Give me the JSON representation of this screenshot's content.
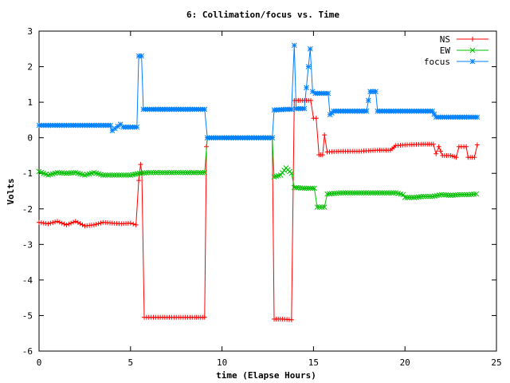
{
  "chart_data": {
    "type": "line",
    "title": "6: Collimation/focus vs. Time",
    "xlabel": "time (Elapse Hours)",
    "ylabel": "Volts",
    "xlim": [
      0,
      25
    ],
    "ylim": [
      -6,
      3
    ],
    "xticks": [
      0,
      5,
      10,
      15,
      20,
      25
    ],
    "yticks": [
      -6,
      -5,
      -4,
      -3,
      -2,
      -1,
      0,
      1,
      2,
      3
    ],
    "xtick_labels": [
      "0",
      "5",
      "10",
      "15",
      "20",
      "25"
    ],
    "ytick_labels": [
      "-6",
      "-5",
      "-4",
      "-3",
      "-2",
      "-1",
      "0",
      "1",
      "2",
      "3"
    ],
    "grid": false,
    "legend_position": "top-right",
    "series": [
      {
        "name": "NS",
        "color": "#ff0000",
        "marker": "plus",
        "points": [
          [
            0,
            -2.38
          ],
          [
            0.5,
            -2.42
          ],
          [
            1.0,
            -2.35
          ],
          [
            1.5,
            -2.45
          ],
          [
            2.0,
            -2.35
          ],
          [
            2.5,
            -2.48
          ],
          [
            3.0,
            -2.45
          ],
          [
            3.5,
            -2.38
          ],
          [
            4.0,
            -2.4
          ],
          [
            4.5,
            -2.42
          ],
          [
            5.0,
            -2.4
          ],
          [
            5.3,
            -2.45
          ],
          [
            5.45,
            -1.2
          ],
          [
            5.55,
            -0.75
          ],
          [
            5.62,
            -1.0
          ],
          [
            5.75,
            -5.05
          ],
          [
            6.5,
            -5.05
          ],
          [
            7.5,
            -5.05
          ],
          [
            8.5,
            -5.05
          ],
          [
            9.05,
            -5.05
          ],
          [
            9.15,
            -0.25
          ],
          [
            9.2,
            0.0
          ],
          [
            10,
            0.0
          ],
          [
            11,
            0.0
          ],
          [
            12,
            0.0
          ],
          [
            12.75,
            0.0
          ],
          [
            12.85,
            -5.1
          ],
          [
            13.3,
            -5.1
          ],
          [
            13.8,
            -5.12
          ],
          [
            13.95,
            1.05
          ],
          [
            14.5,
            1.05
          ],
          [
            14.85,
            1.05
          ],
          [
            15.0,
            0.55
          ],
          [
            15.15,
            0.55
          ],
          [
            15.3,
            -0.48
          ],
          [
            15.5,
            -0.48
          ],
          [
            15.6,
            0.08
          ],
          [
            15.75,
            -0.4
          ],
          [
            16.5,
            -0.38
          ],
          [
            17.5,
            -0.38
          ],
          [
            18.5,
            -0.35
          ],
          [
            19.2,
            -0.35
          ],
          [
            19.5,
            -0.22
          ],
          [
            20,
            -0.2
          ],
          [
            21,
            -0.18
          ],
          [
            21.55,
            -0.18
          ],
          [
            21.7,
            -0.45
          ],
          [
            21.85,
            -0.25
          ],
          [
            22.05,
            -0.5
          ],
          [
            22.5,
            -0.5
          ],
          [
            22.8,
            -0.55
          ],
          [
            22.95,
            -0.25
          ],
          [
            23.35,
            -0.25
          ],
          [
            23.45,
            -0.55
          ],
          [
            23.8,
            -0.55
          ],
          [
            23.95,
            -0.2
          ]
        ]
      },
      {
        "name": "EW",
        "color": "#00c000",
        "marker": "cross",
        "points": [
          [
            0,
            -0.95
          ],
          [
            0.5,
            -1.05
          ],
          [
            1.0,
            -0.98
          ],
          [
            1.5,
            -1.0
          ],
          [
            2.0,
            -0.98
          ],
          [
            2.5,
            -1.05
          ],
          [
            3.0,
            -0.98
          ],
          [
            3.5,
            -1.05
          ],
          [
            4.0,
            -1.05
          ],
          [
            4.5,
            -1.05
          ],
          [
            5.0,
            -1.05
          ],
          [
            5.5,
            -1.0
          ],
          [
            6,
            -0.98
          ],
          [
            7,
            -0.98
          ],
          [
            8,
            -0.98
          ],
          [
            9.05,
            -0.98
          ],
          [
            9.2,
            0.0
          ],
          [
            10,
            0.0
          ],
          [
            11,
            0.0
          ],
          [
            12,
            0.0
          ],
          [
            12.75,
            0.0
          ],
          [
            12.85,
            -1.1
          ],
          [
            13.2,
            -1.05
          ],
          [
            13.5,
            -0.85
          ],
          [
            13.8,
            -1.0
          ],
          [
            13.95,
            -1.4
          ],
          [
            14.5,
            -1.42
          ],
          [
            15.05,
            -1.42
          ],
          [
            15.2,
            -1.95
          ],
          [
            15.6,
            -1.95
          ],
          [
            15.75,
            -1.58
          ],
          [
            16.5,
            -1.55
          ],
          [
            17.5,
            -1.55
          ],
          [
            18.5,
            -1.55
          ],
          [
            19.5,
            -1.55
          ],
          [
            19.9,
            -1.6
          ],
          [
            20.0,
            -1.68
          ],
          [
            20.5,
            -1.68
          ],
          [
            21,
            -1.65
          ],
          [
            21.5,
            -1.65
          ],
          [
            22,
            -1.6
          ],
          [
            22.5,
            -1.62
          ],
          [
            23,
            -1.6
          ],
          [
            23.5,
            -1.6
          ],
          [
            23.9,
            -1.58
          ]
        ]
      },
      {
        "name": "focus",
        "color": "#0080ff",
        "marker": "star",
        "points": [
          [
            0,
            0.35
          ],
          [
            1,
            0.35
          ],
          [
            2,
            0.35
          ],
          [
            3,
            0.35
          ],
          [
            3.9,
            0.35
          ],
          [
            4.0,
            0.2
          ],
          [
            4.3,
            0.32
          ],
          [
            4.45,
            0.38
          ],
          [
            4.6,
            0.3
          ],
          [
            5,
            0.3
          ],
          [
            5.35,
            0.3
          ],
          [
            5.45,
            2.3
          ],
          [
            5.6,
            2.3
          ],
          [
            5.7,
            0.8
          ],
          [
            6.5,
            0.8
          ],
          [
            7.5,
            0.8
          ],
          [
            8.5,
            0.8
          ],
          [
            9.05,
            0.8
          ],
          [
            9.2,
            0.0
          ],
          [
            10,
            0.0
          ],
          [
            11,
            0.0
          ],
          [
            12,
            0.0
          ],
          [
            12.75,
            0.0
          ],
          [
            12.85,
            0.78
          ],
          [
            13.5,
            0.8
          ],
          [
            13.8,
            0.8
          ],
          [
            13.95,
            2.6
          ],
          [
            14.05,
            0.82
          ],
          [
            14.5,
            0.82
          ],
          [
            14.72,
            2.0
          ],
          [
            14.82,
            2.5
          ],
          [
            14.95,
            1.3
          ],
          [
            15.1,
            1.25
          ],
          [
            15.8,
            1.25
          ],
          [
            15.9,
            0.65
          ],
          [
            16.1,
            0.75
          ],
          [
            17,
            0.75
          ],
          [
            17.9,
            0.75
          ],
          [
            18.0,
            1.05
          ],
          [
            18.1,
            1.3
          ],
          [
            18.4,
            1.3
          ],
          [
            18.5,
            0.75
          ],
          [
            19.5,
            0.75
          ],
          [
            20.5,
            0.75
          ],
          [
            21.5,
            0.75
          ],
          [
            21.7,
            0.58
          ],
          [
            22.5,
            0.58
          ],
          [
            23.5,
            0.58
          ],
          [
            23.95,
            0.58
          ]
        ]
      }
    ]
  }
}
